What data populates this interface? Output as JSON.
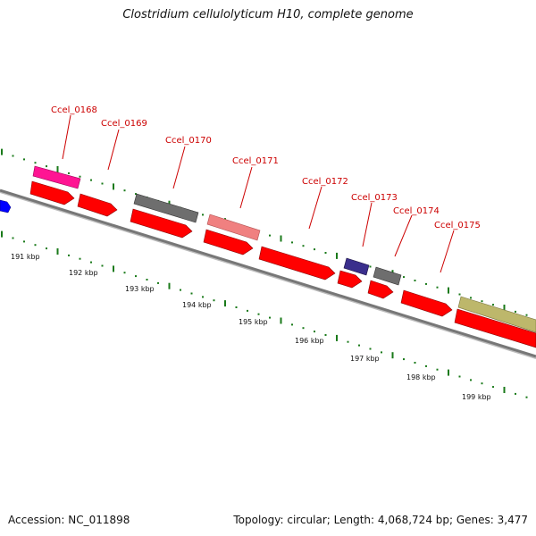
{
  "title": "Clostridium cellulolyticum H10, complete genome",
  "footer": {
    "accession": "Accession: NC_011898",
    "summary": "Topology: circular; Length: 4,068,724 bp; Genes: 3,477"
  },
  "scale_labels": [
    "191 kbp",
    "192 kbp",
    "193 kbp",
    "194 kbp",
    "195 kbp",
    "196 kbp",
    "197 kbp",
    "198 kbp",
    "199 kbp"
  ],
  "gene_labels": [
    "Ccel_0168",
    "Ccel_0169",
    "Ccel_0170",
    "Ccel_0171",
    "Ccel_0172",
    "Ccel_0173",
    "Ccel_0174",
    "Ccel_0175"
  ],
  "colors": {
    "cds": "#ff0000",
    "feature_magenta": "#ff1493",
    "feature_gray": "#6e6e6e",
    "feature_pink": "#f08080",
    "feature_navy": "#3a2e8c",
    "feature_khaki": "#bdb76b",
    "feature_blue": "#0000ff",
    "backbone": "#777777",
    "tick": "#1a7a1a",
    "label": "#cc0000"
  }
}
